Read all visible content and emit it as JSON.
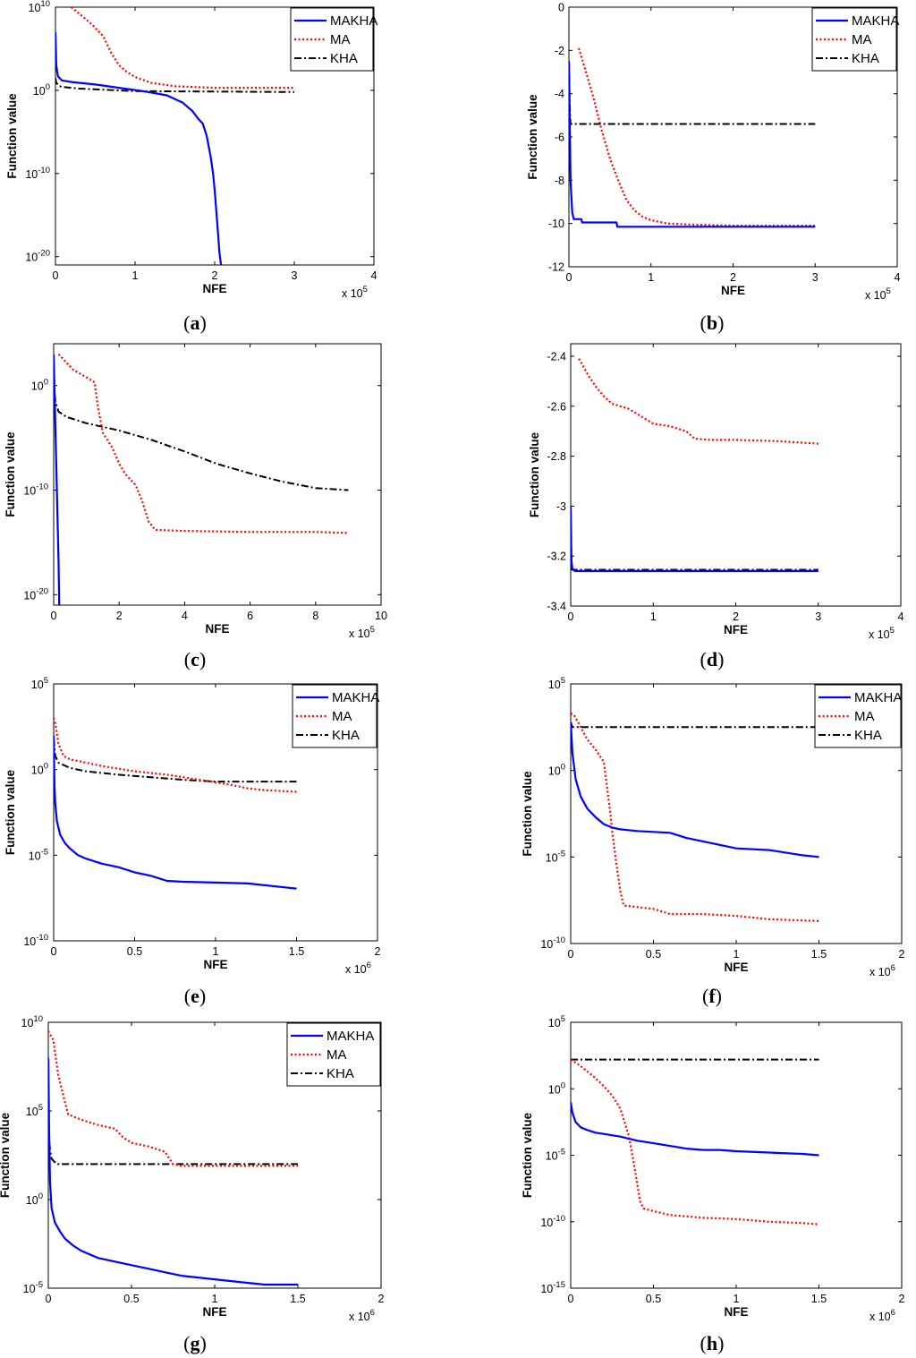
{
  "figure": {
    "series_colors": {
      "MAKHA": "#0000ff",
      "MA": "#ff0000",
      "KHA": "#000000"
    }
  },
  "chart_data": [
    {
      "id": "a",
      "caption_letter": "a",
      "type": "line",
      "yscale": "log",
      "xlabel": "NFE",
      "ylabel": "Function value",
      "x_multiplier": "x 10",
      "x_exp": "5",
      "xlim": [
        0,
        4
      ],
      "ylim_exp": [
        -21,
        10
      ],
      "xticks": [
        "0",
        "1",
        "2",
        "3",
        "4"
      ],
      "yticks": [
        {
          "base": "10",
          "exp": "10",
          "v": 10
        },
        {
          "base": "10",
          "exp": "0",
          "v": 0
        },
        {
          "base": "10",
          "exp": "-10",
          "v": -10
        },
        {
          "base": "10",
          "exp": "-20",
          "v": -20
        }
      ],
      "legend": [
        "MAKHA",
        "MA",
        "KHA"
      ],
      "series": [
        {
          "name": "MAKHA",
          "x": [
            0,
            0.01,
            0.03,
            0.08,
            0.2,
            0.5,
            0.8,
            1.1,
            1.4,
            1.6,
            1.72,
            1.8,
            1.85,
            1.9,
            1.95,
            1.98,
            2.0,
            2.02,
            2.04,
            2.06,
            2.08
          ],
          "y": [
            7,
            3,
            1.7,
            1.2,
            1.0,
            0.7,
            0.3,
            -0.1,
            -0.6,
            -1.5,
            -2.5,
            -3.5,
            -4,
            -5.5,
            -8,
            -10,
            -12,
            -14.5,
            -17,
            -19.5,
            -21
          ]
        },
        {
          "name": "MA",
          "x": [
            0.2,
            0.3,
            0.45,
            0.6,
            0.7,
            0.8,
            0.9,
            1.0,
            1.2,
            1.5,
            2.0,
            3.0
          ],
          "y": [
            10,
            9.2,
            8,
            6.5,
            4.5,
            3,
            2.2,
            1.6,
            0.9,
            0.5,
            0.3,
            0.3
          ]
        },
        {
          "name": "KHA",
          "x": [
            0,
            0.01,
            0.05,
            0.1,
            0.3,
            1.0,
            3.0
          ],
          "y": [
            1.5,
            0.9,
            0.5,
            0.4,
            0.2,
            -0.1,
            -0.2
          ]
        }
      ]
    },
    {
      "id": "b",
      "caption_letter": "b",
      "type": "line",
      "yscale": "linear",
      "xlabel": "NFE",
      "ylabel": "Function value",
      "x_multiplier": "x 10",
      "x_exp": "5",
      "xlim": [
        0,
        4
      ],
      "ylim": [
        -12,
        0
      ],
      "xticks": [
        "0",
        "1",
        "2",
        "3",
        "4"
      ],
      "yticks": [
        {
          "label": "0",
          "v": 0
        },
        {
          "label": "-2",
          "v": -2
        },
        {
          "label": "-4",
          "v": -4
        },
        {
          "label": "-6",
          "v": -6
        },
        {
          "label": "-8",
          "v": -8
        },
        {
          "label": "-10",
          "v": -10
        },
        {
          "label": "-12",
          "v": -12
        }
      ],
      "legend": [
        "MAKHA",
        "MA",
        "KHA"
      ],
      "series": [
        {
          "name": "MAKHA",
          "x": [
            0,
            0.02,
            0.04,
            0.06,
            0.15,
            0.16,
            0.58,
            0.59,
            3.0
          ],
          "y": [
            -2.5,
            -8,
            -9.5,
            -9.8,
            -9.8,
            -9.95,
            -9.95,
            -10.15,
            -10.15
          ]
        },
        {
          "name": "MA",
          "x": [
            0.12,
            0.2,
            0.3,
            0.4,
            0.5,
            0.6,
            0.7,
            0.8,
            0.9,
            1.0,
            1.2,
            1.5,
            2.0,
            3.0
          ],
          "y": [
            -1.9,
            -2.9,
            -4.2,
            -5.7,
            -7.0,
            -8.0,
            -8.9,
            -9.4,
            -9.7,
            -9.85,
            -10.0,
            -10.05,
            -10.1,
            -10.1
          ]
        },
        {
          "name": "KHA",
          "x": [
            0,
            0.01,
            0.02,
            3.0
          ],
          "y": [
            -2.5,
            -4.5,
            -5.4,
            -5.4
          ]
        }
      ]
    },
    {
      "id": "c",
      "caption_letter": "c",
      "type": "line",
      "yscale": "log",
      "xlabel": "NFE",
      "ylabel": "Function value",
      "x_multiplier": "x 10",
      "x_exp": "5",
      "xlim": [
        0,
        10
      ],
      "ylim_exp": [
        -21,
        4
      ],
      "xticks": [
        "0",
        "2",
        "4",
        "6",
        "8",
        "10"
      ],
      "yticks": [
        {
          "base": "10",
          "exp": "0",
          "v": 0
        },
        {
          "base": "10",
          "exp": "-10",
          "v": -10
        },
        {
          "base": "10",
          "exp": "-20",
          "v": -20
        }
      ],
      "legend": [],
      "series": [
        {
          "name": "MAKHA",
          "x": [
            0,
            0.03,
            0.06,
            0.09,
            0.12,
            0.15,
            0.17
          ],
          "y": [
            3,
            -1,
            -5,
            -9,
            -13,
            -17,
            -21
          ]
        },
        {
          "name": "MA",
          "x": [
            0.15,
            0.3,
            0.6,
            1.0,
            1.25,
            1.35,
            1.5,
            1.8,
            2.0,
            2.2,
            2.5,
            2.7,
            2.9,
            3.1,
            4.0,
            6.0,
            8.0,
            9.0
          ],
          "y": [
            3,
            2.5,
            1.5,
            0.8,
            0.3,
            -2,
            -4.5,
            -6,
            -7.5,
            -8.5,
            -9.5,
            -11,
            -13,
            -13.8,
            -13.9,
            -14,
            -14,
            -14.1
          ]
        },
        {
          "name": "KHA",
          "x": [
            0,
            0.05,
            0.15,
            0.4,
            1.0,
            2.0,
            3.0,
            4.0,
            5.0,
            6.0,
            7.0,
            8.0,
            9.0
          ],
          "y": [
            0.5,
            -1.5,
            -2.5,
            -3,
            -3.6,
            -4.3,
            -5.2,
            -6.3,
            -7.5,
            -8.4,
            -9.2,
            -9.8,
            -10
          ]
        }
      ]
    },
    {
      "id": "d",
      "caption_letter": "d",
      "type": "line",
      "yscale": "linear",
      "xlabel": "NFE",
      "ylabel": "Function value",
      "x_multiplier": "x 10",
      "x_exp": "5",
      "xlim": [
        0,
        4
      ],
      "ylim": [
        -3.4,
        -2.35
      ],
      "xticks": [
        "0",
        "1",
        "2",
        "3",
        "4"
      ],
      "yticks": [
        {
          "label": "-2.4",
          "v": -2.4
        },
        {
          "label": "-2.6",
          "v": -2.6
        },
        {
          "label": "-2.8",
          "v": -2.8
        },
        {
          "label": "-3",
          "v": -3
        },
        {
          "label": "-3.2",
          "v": -3.2
        },
        {
          "label": "-3.4",
          "v": -3.4
        }
      ],
      "legend": [],
      "series": [
        {
          "name": "MAKHA",
          "x": [
            0,
            0.005,
            0.01,
            0.02,
            0.05,
            3.0
          ],
          "y": [
            -3.0,
            -3.15,
            -3.22,
            -3.25,
            -3.26,
            -3.26
          ]
        },
        {
          "name": "MA",
          "x": [
            0.1,
            0.2,
            0.3,
            0.4,
            0.5,
            0.6,
            0.7,
            0.8,
            0.9,
            1.0,
            1.2,
            1.4,
            1.5,
            1.7,
            2.0,
            2.5,
            3.0
          ],
          "y": [
            -2.41,
            -2.47,
            -2.52,
            -2.56,
            -2.59,
            -2.6,
            -2.61,
            -2.63,
            -2.65,
            -2.67,
            -2.68,
            -2.7,
            -2.73,
            -2.735,
            -2.735,
            -2.74,
            -2.75
          ]
        },
        {
          "name": "KHA",
          "x": [
            0,
            0.02,
            0.05,
            3.0
          ],
          "y": [
            -3.25,
            -3.255,
            -3.255,
            -3.255
          ]
        }
      ]
    },
    {
      "id": "e",
      "caption_letter": "e",
      "type": "line",
      "yscale": "log",
      "xlabel": "NFE",
      "ylabel": "Function value",
      "x_multiplier": "x 10",
      "x_exp": "6",
      "xlim": [
        0,
        2
      ],
      "ylim_exp": [
        -10,
        5
      ],
      "xticks": [
        "0",
        "0.5",
        "1",
        "1.5",
        "2"
      ],
      "yticks": [
        {
          "base": "10",
          "exp": "5",
          "v": 5
        },
        {
          "base": "10",
          "exp": "0",
          "v": 0
        },
        {
          "base": "10",
          "exp": "-5",
          "v": -5
        },
        {
          "base": "10",
          "exp": "-10",
          "v": -10
        }
      ],
      "legend": [
        "MAKHA",
        "MA",
        "KHA"
      ],
      "series": [
        {
          "name": "MAKHA",
          "x": [
            0,
            0.005,
            0.01,
            0.02,
            0.04,
            0.07,
            0.1,
            0.15,
            0.2,
            0.3,
            0.4,
            0.5,
            0.6,
            0.7,
            0.8,
            1.0,
            1.2,
            1.45,
            1.5
          ],
          "y": [
            2,
            -1,
            -2,
            -3,
            -3.8,
            -4.3,
            -4.6,
            -5.0,
            -5.2,
            -5.5,
            -5.7,
            -6.0,
            -6.2,
            -6.5,
            -6.55,
            -6.6,
            -6.65,
            -6.9,
            -6.95
          ]
        },
        {
          "name": "MA",
          "x": [
            0,
            0.01,
            0.03,
            0.06,
            0.1,
            0.2,
            0.3,
            0.5,
            0.7,
            0.9,
            1.1,
            1.2,
            1.3,
            1.5
          ],
          "y": [
            3,
            2.7,
            1.5,
            0.8,
            0.6,
            0.4,
            0.2,
            -0.1,
            -0.3,
            -0.6,
            -0.9,
            -1.1,
            -1.2,
            -1.3
          ]
        },
        {
          "name": "KHA",
          "x": [
            0,
            0.005,
            0.01,
            0.03,
            0.1,
            0.2,
            0.4,
            0.6,
            0.8,
            1.0,
            1.5
          ],
          "y": [
            1.8,
            1.2,
            0.8,
            0.4,
            0.1,
            -0.1,
            -0.3,
            -0.45,
            -0.6,
            -0.7,
            -0.7
          ]
        }
      ]
    },
    {
      "id": "f",
      "caption_letter": "f",
      "type": "line",
      "yscale": "log",
      "xlabel": "NFE",
      "ylabel": "Function value",
      "x_multiplier": "x 10",
      "x_exp": "6",
      "xlim": [
        0,
        2
      ],
      "ylim_exp": [
        -10,
        5
      ],
      "xticks": [
        "0",
        "0.5",
        "1",
        "1.5",
        "2"
      ],
      "yticks": [
        {
          "base": "10",
          "exp": "5",
          "v": 5
        },
        {
          "base": "10",
          "exp": "0",
          "v": 0
        },
        {
          "base": "10",
          "exp": "-5",
          "v": -5
        },
        {
          "base": "10",
          "exp": "-10",
          "v": -10
        }
      ],
      "legend": [
        "MAKHA",
        "MA",
        "KHA"
      ],
      "series": [
        {
          "name": "MAKHA",
          "x": [
            0,
            0.01,
            0.03,
            0.06,
            0.1,
            0.15,
            0.2,
            0.25,
            0.3,
            0.4,
            0.5,
            0.6,
            0.7,
            0.8,
            0.9,
            1.0,
            1.2,
            1.4,
            1.5
          ],
          "y": [
            2.8,
            1,
            -0.5,
            -1.5,
            -2.2,
            -2.7,
            -3.1,
            -3.3,
            -3.4,
            -3.5,
            -3.55,
            -3.6,
            -3.9,
            -4.1,
            -4.3,
            -4.5,
            -4.6,
            -4.9,
            -5.0
          ]
        },
        {
          "name": "MA",
          "x": [
            0,
            0.02,
            0.05,
            0.1,
            0.15,
            0.2,
            0.22,
            0.24,
            0.25,
            0.27,
            0.3,
            0.32,
            0.5,
            0.6,
            0.8,
            1.0,
            1.2,
            1.5
          ],
          "y": [
            3.3,
            3.2,
            2.7,
            1.8,
            1.2,
            0.5,
            -1,
            -2.5,
            -3.5,
            -5,
            -7,
            -7.8,
            -8,
            -8.3,
            -8.3,
            -8.4,
            -8.6,
            -8.7
          ]
        },
        {
          "name": "KHA",
          "x": [
            0,
            0.01,
            0.05,
            1.5
          ],
          "y": [
            2.8,
            2.5,
            2.5,
            2.5
          ]
        }
      ]
    },
    {
      "id": "g",
      "caption_letter": "g",
      "type": "line",
      "yscale": "log",
      "xlabel": "NFE",
      "ylabel": "Function value",
      "x_multiplier": "x 10",
      "x_exp": "6",
      "xlim": [
        0,
        2
      ],
      "ylim_exp": [
        -5,
        10
      ],
      "xticks": [
        "0",
        "0.5",
        "1",
        "1.5",
        "2"
      ],
      "yticks": [
        {
          "base": "10",
          "exp": "10",
          "v": 10
        },
        {
          "base": "10",
          "exp": "5",
          "v": 5
        },
        {
          "base": "10",
          "exp": "0",
          "v": 0
        },
        {
          "base": "10",
          "exp": "-5",
          "v": -5
        }
      ],
      "legend": [
        "MAKHA",
        "MA",
        "KHA"
      ],
      "series": [
        {
          "name": "MAKHA",
          "x": [
            0,
            0.005,
            0.01,
            0.02,
            0.04,
            0.07,
            0.1,
            0.15,
            0.2,
            0.3,
            0.4,
            0.5,
            0.6,
            0.7,
            0.8,
            0.9,
            1.0,
            1.2,
            1.3,
            1.5
          ],
          "y": [
            8,
            4,
            1,
            -0.5,
            -1.3,
            -1.8,
            -2.2,
            -2.6,
            -2.9,
            -3.3,
            -3.5,
            -3.7,
            -3.9,
            -4.1,
            -4.3,
            -4.4,
            -4.5,
            -4.7,
            -4.8,
            -4.8
          ]
        },
        {
          "name": "MA",
          "x": [
            0,
            0.03,
            0.06,
            0.1,
            0.12,
            0.2,
            0.3,
            0.4,
            0.45,
            0.5,
            0.6,
            0.7,
            0.75,
            0.8,
            1.0,
            1.5
          ],
          "y": [
            9.5,
            9,
            7,
            5.5,
            4.8,
            4.5,
            4.2,
            4.0,
            3.5,
            3.2,
            3.0,
            2.7,
            2.0,
            1.9,
            1.9,
            1.9
          ]
        },
        {
          "name": "KHA",
          "x": [
            0,
            0.01,
            0.02,
            0.05,
            0.1,
            1.5
          ],
          "y": [
            4,
            2.8,
            2.3,
            2.0,
            2.0,
            2.0
          ]
        }
      ]
    },
    {
      "id": "h",
      "caption_letter": "h",
      "type": "line",
      "yscale": "log",
      "xlabel": "NFE",
      "ylabel": "Function value",
      "x_multiplier": "x 10",
      "x_exp": "6",
      "xlim": [
        0,
        2
      ],
      "ylim_exp": [
        -15,
        5
      ],
      "xticks": [
        "0",
        "0.5",
        "1",
        "1.5",
        "2"
      ],
      "yticks": [
        {
          "base": "10",
          "exp": "5",
          "v": 5
        },
        {
          "base": "10",
          "exp": "0",
          "v": 0
        },
        {
          "base": "10",
          "exp": "-5",
          "v": -5
        },
        {
          "base": "10",
          "exp": "-10",
          "v": -10
        },
        {
          "base": "10",
          "exp": "-15",
          "v": -15
        }
      ],
      "legend": [],
      "series": [
        {
          "name": "MAKHA",
          "x": [
            0,
            0.01,
            0.03,
            0.06,
            0.1,
            0.15,
            0.2,
            0.3,
            0.4,
            0.5,
            0.6,
            0.7,
            0.8,
            0.9,
            1.0,
            1.2,
            1.4,
            1.5
          ],
          "y": [
            -1,
            -1.8,
            -2.5,
            -2.9,
            -3.1,
            -3.3,
            -3.4,
            -3.6,
            -3.9,
            -4.1,
            -4.3,
            -4.5,
            -4.6,
            -4.6,
            -4.7,
            -4.8,
            -4.9,
            -5.0
          ]
        },
        {
          "name": "MA",
          "x": [
            0,
            0.05,
            0.1,
            0.15,
            0.2,
            0.25,
            0.3,
            0.35,
            0.38,
            0.4,
            0.42,
            0.44,
            0.5,
            0.6,
            0.8,
            1.0,
            1.2,
            1.4,
            1.5
          ],
          "y": [
            2.2,
            1.8,
            1.3,
            0.8,
            0.2,
            -0.5,
            -1.5,
            -3.5,
            -5.5,
            -7,
            -8.5,
            -9,
            -9.2,
            -9.5,
            -9.7,
            -9.8,
            -10.0,
            -10.1,
            -10.2
          ]
        },
        {
          "name": "KHA",
          "x": [
            0,
            1.5
          ],
          "y": [
            2.2,
            2.2
          ]
        }
      ]
    }
  ]
}
